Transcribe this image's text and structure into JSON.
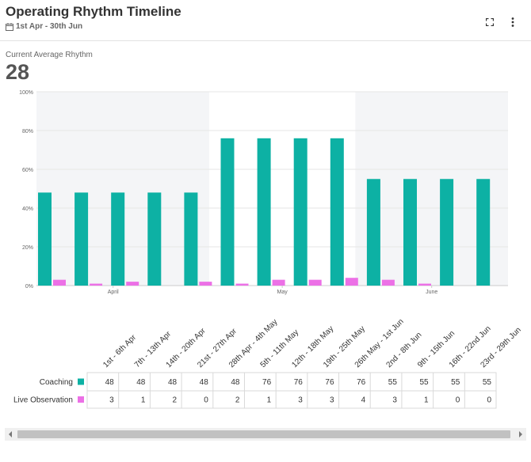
{
  "header": {
    "title": "Operating Rhythm Timeline",
    "date_range": "1st Apr - 30th Jun"
  },
  "metric": {
    "label": "Current Average Rhythm",
    "value": "28"
  },
  "icons": {
    "calendar": "calendar-icon",
    "expand": "expand-icon",
    "menu": "more-vertical-icon",
    "scroll_left": "arrow-left-icon",
    "scroll_right": "arrow-right-icon"
  },
  "colors": {
    "coaching": "#0db1a4",
    "live_observation": "#ec70e6",
    "band": "#f4f5f7"
  },
  "chart_data": {
    "type": "bar",
    "ylim": [
      0,
      100
    ],
    "yticks": [
      "0%",
      "20%",
      "40%",
      "60%",
      "80%",
      "100%"
    ],
    "months": [
      "April",
      "May",
      "June"
    ],
    "categories": [
      "1st - 6th Apr",
      "7th - 13th Apr",
      "14th - 20th Apr",
      "21st - 27th Apr",
      "28th Apr - 4th May",
      "5th - 11th May",
      "12th - 18th May",
      "19th - 25th May",
      "26th May - 1st Jun",
      "2nd - 8th Jun",
      "9th - 15th Jun",
      "16th - 22nd Jun",
      "23rd - 29th Jun"
    ],
    "series": [
      {
        "name": "Coaching",
        "values": [
          48,
          48,
          48,
          48,
          48,
          76,
          76,
          76,
          76,
          55,
          55,
          55,
          55
        ],
        "table": [
          "48",
          "48",
          "48",
          "48",
          "48",
          "76",
          "76",
          "76",
          "76",
          "55",
          "55",
          "55",
          "55"
        ]
      },
      {
        "name": "Live Observation",
        "values": [
          3,
          1,
          2,
          0,
          2,
          1,
          3,
          3,
          4,
          3,
          1,
          0,
          0
        ],
        "table": [
          "3",
          "1",
          "2",
          "0",
          "2",
          "1",
          "3",
          "3",
          "4",
          "3",
          "1",
          "0",
          "0"
        ]
      }
    ]
  }
}
